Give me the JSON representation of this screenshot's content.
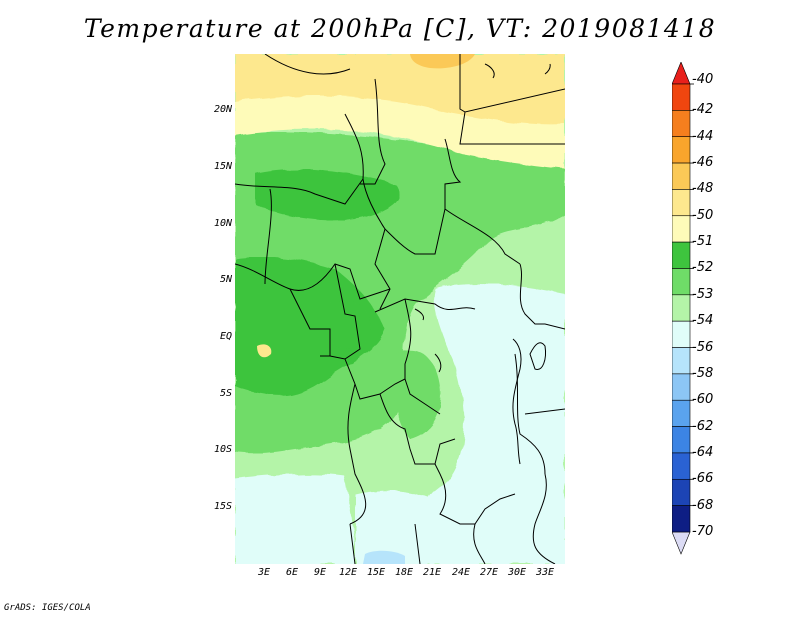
{
  "title": "Temperature at 200hPa [C], VT: 2019081418",
  "footer": "GrADS: IGES/COLA",
  "map": {
    "region": "Central Africa",
    "lat_labels": [
      "20N",
      "15N",
      "10N",
      "5N",
      "EQ",
      "5S",
      "10S",
      "15S"
    ],
    "lon_labels": [
      "3E",
      "6E",
      "9E",
      "12E",
      "15E",
      "18E",
      "21E",
      "24E",
      "27E",
      "30E",
      "33E"
    ]
  },
  "legend": {
    "levels": [
      {
        "label": "-40",
        "color": "#e81e0a"
      },
      {
        "label": "-42",
        "color": "#f0460f"
      },
      {
        "label": "-44",
        "color": "#f57f1e"
      },
      {
        "label": "-46",
        "color": "#f9a52c"
      },
      {
        "label": "-48",
        "color": "#fbc957"
      },
      {
        "label": "-50",
        "color": "#fde88e"
      },
      {
        "label": "-51",
        "color": "#fefbb9"
      },
      {
        "label": "-52",
        "color": "#3ec43e"
      },
      {
        "label": "-53",
        "color": "#6fdc68"
      },
      {
        "label": "-54",
        "color": "#b4f4a8"
      },
      {
        "label": "-56",
        "color": "#e0fdf9"
      },
      {
        "label": "-58",
        "color": "#b6e4fb"
      },
      {
        "label": "-60",
        "color": "#8cc6f5"
      },
      {
        "label": "-62",
        "color": "#5aa3ee"
      },
      {
        "label": "-64",
        "color": "#3c84e4"
      },
      {
        "label": "-66",
        "color": "#2a62d3"
      },
      {
        "label": "-68",
        "color": "#1c44b5"
      },
      {
        "label": "-70",
        "color": "#0e1e84"
      }
    ],
    "top_cap_color": "#e8201c",
    "bottom_cap_color": "#dcdcf5"
  }
}
